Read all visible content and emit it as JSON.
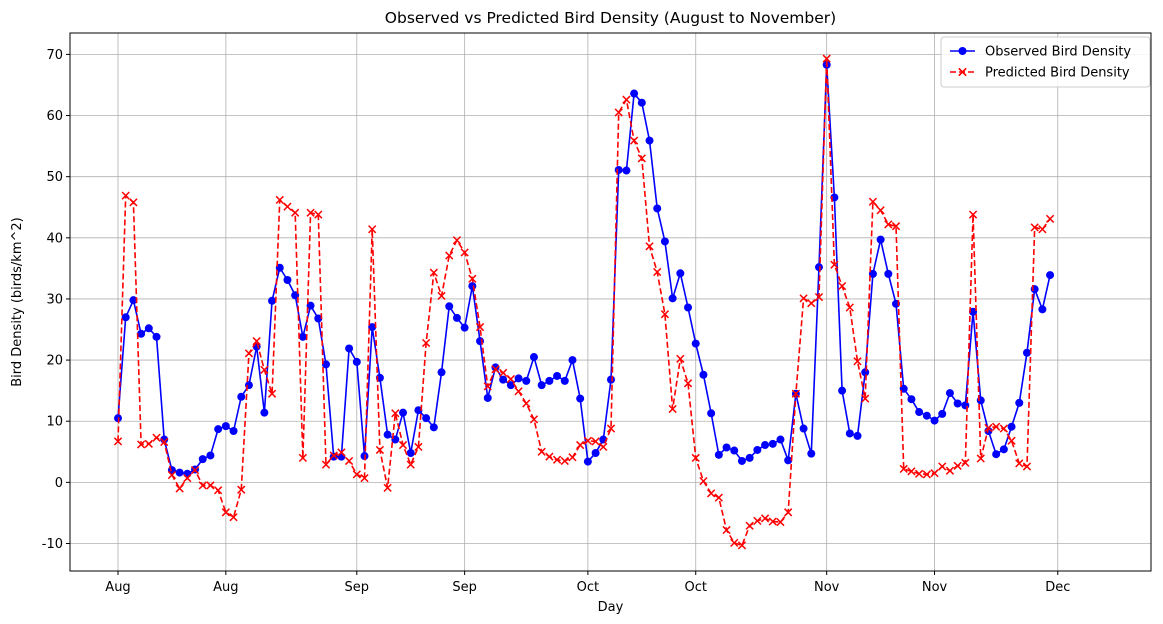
{
  "chart_data": {
    "type": "line",
    "title": "Observed vs Predicted Bird Density (August to November)",
    "xlabel": "Day",
    "ylabel": "Bird Density (birds/km^2)",
    "ylim": [
      -14.5,
      73.5
    ],
    "yticks": [
      -10,
      0,
      10,
      20,
      30,
      40,
      50,
      60,
      70
    ],
    "x_range": [
      0,
      128
    ],
    "xticks": [
      {
        "x": 0,
        "label": "Aug"
      },
      {
        "x": 14,
        "label": "Aug"
      },
      {
        "x": 31,
        "label": "Sep"
      },
      {
        "x": 45,
        "label": "Sep"
      },
      {
        "x": 61,
        "label": "Oct"
      },
      {
        "x": 75,
        "label": "Oct"
      },
      {
        "x": 92,
        "label": "Nov"
      },
      {
        "x": 106,
        "label": "Nov"
      },
      {
        "x": 122,
        "label": "Dec"
      }
    ],
    "grid": true,
    "legend_position": "top-right",
    "series": [
      {
        "name": "Observed Bird Density",
        "color": "#0000ff",
        "marker": "circle",
        "linestyle": "solid",
        "values": [
          10.5,
          27.0,
          29.8,
          24.3,
          25.2,
          23.8,
          7.0,
          2.0,
          1.6,
          1.4,
          2.1,
          3.8,
          4.4,
          8.7,
          9.2,
          8.4,
          14.0,
          15.9,
          22.2,
          11.4,
          29.7,
          35.1,
          33.1,
          30.6,
          23.8,
          28.9,
          26.8,
          19.3,
          4.2,
          4.2,
          21.9,
          19.7,
          4.3,
          25.4,
          17.1,
          7.8,
          7.0,
          11.4,
          4.8,
          11.8,
          10.5,
          9.0,
          18.0,
          28.8,
          26.9,
          25.3,
          32.1,
          23.1,
          13.8,
          18.8,
          16.8,
          15.9,
          17.0,
          16.6,
          20.5,
          15.9,
          16.6,
          17.4,
          16.6,
          20.0,
          13.7,
          3.4,
          4.8,
          7.0,
          16.8,
          51.1,
          51.0,
          63.6,
          62.1,
          55.9,
          44.8,
          39.4,
          30.1,
          34.2,
          28.6,
          22.7,
          17.6,
          11.3,
          4.5,
          5.7,
          5.2,
          3.5,
          4.0,
          5.3,
          6.1,
          6.3,
          7.0,
          3.6,
          14.5,
          8.8,
          4.7,
          35.2,
          68.3,
          46.6,
          15.0,
          8.0,
          7.6,
          18.0,
          34.1,
          39.7,
          34.1,
          29.2,
          15.3,
          13.6,
          11.5,
          10.9,
          10.1,
          11.2,
          14.6,
          12.9,
          12.6,
          27.9,
          13.4,
          8.4,
          4.6,
          5.4,
          9.1,
          13.0,
          21.2,
          31.6,
          28.3,
          33.9
        ]
      },
      {
        "name": "Predicted Bird Density",
        "color": "#ff0000",
        "marker": "x",
        "linestyle": "dashed",
        "values": [
          6.7,
          46.9,
          45.8,
          6.2,
          6.3,
          7.3,
          6.6,
          1.2,
          -1.0,
          0.7,
          2.0,
          -0.5,
          -0.5,
          -1.3,
          -4.9,
          -5.7,
          -1.2,
          21.1,
          23.1,
          18.4,
          14.5,
          46.2,
          45.1,
          44.1,
          4.0,
          44.1,
          43.8,
          2.9,
          4.4,
          4.9,
          3.5,
          1.3,
          0.7,
          41.4,
          5.3,
          -0.9,
          11.3,
          6.1,
          2.9,
          5.8,
          22.8,
          34.3,
          30.5,
          37.1,
          39.6,
          37.6,
          33.3,
          25.4,
          15.7,
          18.5,
          17.9,
          16.9,
          14.9,
          12.9,
          10.3,
          5.0,
          4.2,
          3.7,
          3.5,
          4.1,
          6.1,
          6.8,
          6.7,
          5.8,
          8.8,
          60.5,
          62.6,
          55.9,
          53.0,
          38.6,
          34.4,
          27.5,
          12.0,
          20.2,
          16.2,
          4.0,
          0.2,
          -1.8,
          -2.5,
          -7.8,
          -9.9,
          -10.3,
          -7.1,
          -6.3,
          -5.9,
          -6.4,
          -6.5,
          -4.9,
          14.5,
          30.1,
          29.3,
          30.3,
          69.3,
          35.6,
          32.1,
          28.6,
          19.8,
          13.7,
          45.9,
          44.5,
          42.2,
          41.9,
          2.2,
          1.8,
          1.4,
          1.3,
          1.5,
          2.6,
          1.9,
          2.7,
          3.2,
          43.8,
          3.9,
          8.9,
          9.1,
          8.8,
          6.8,
          3.1,
          2.6,
          41.7,
          41.4,
          43.1
        ]
      }
    ]
  }
}
